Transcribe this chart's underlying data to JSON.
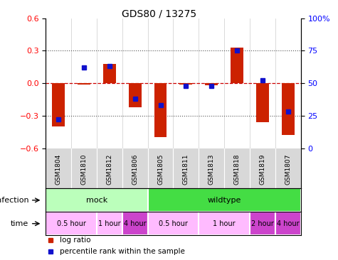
{
  "title": "GDS80 / 13275",
  "samples": [
    "GSM1804",
    "GSM1810",
    "GSM1812",
    "GSM1806",
    "GSM1805",
    "GSM1811",
    "GSM1813",
    "GSM1818",
    "GSM1819",
    "GSM1807"
  ],
  "log_ratio": [
    -0.4,
    -0.01,
    0.18,
    -0.22,
    -0.5,
    -0.01,
    -0.02,
    0.33,
    -0.36,
    -0.48
  ],
  "percentile": [
    22,
    62,
    63,
    38,
    33,
    48,
    48,
    75,
    52,
    28
  ],
  "ylim_left": [
    -0.6,
    0.6
  ],
  "ylim_right": [
    0,
    100
  ],
  "yticks_left": [
    -0.6,
    -0.3,
    0.0,
    0.3,
    0.6
  ],
  "yticks_right": [
    0,
    25,
    50,
    75,
    100
  ],
  "bar_color": "#cc2200",
  "dot_color": "#1111cc",
  "zero_line_color": "#cc0000",
  "dotted_line_color": "#555555",
  "infection_groups": [
    {
      "label": "mock",
      "start": 0,
      "end": 4,
      "color": "#bbffbb"
    },
    {
      "label": "wildtype",
      "start": 4,
      "end": 10,
      "color": "#44dd44"
    }
  ],
  "time_groups": [
    {
      "label": "0.5 hour",
      "start": 0,
      "end": 2,
      "color": "#ffbbff"
    },
    {
      "label": "1 hour",
      "start": 2,
      "end": 3,
      "color": "#ffbbff"
    },
    {
      "label": "4 hour",
      "start": 3,
      "end": 4,
      "color": "#cc44cc"
    },
    {
      "label": "0.5 hour",
      "start": 4,
      "end": 6,
      "color": "#ffbbff"
    },
    {
      "label": "1 hour",
      "start": 6,
      "end": 8,
      "color": "#ffbbff"
    },
    {
      "label": "2 hour",
      "start": 8,
      "end": 9,
      "color": "#cc44cc"
    },
    {
      "label": "4 hour",
      "start": 9,
      "end": 10,
      "color": "#cc44cc"
    }
  ],
  "legend_items": [
    {
      "label": "log ratio",
      "color": "#cc2200"
    },
    {
      "label": "percentile rank within the sample",
      "color": "#1111cc"
    }
  ],
  "infection_label": "infection",
  "time_label": "time",
  "fig_width": 4.75,
  "fig_height": 3.66,
  "dpi": 100
}
